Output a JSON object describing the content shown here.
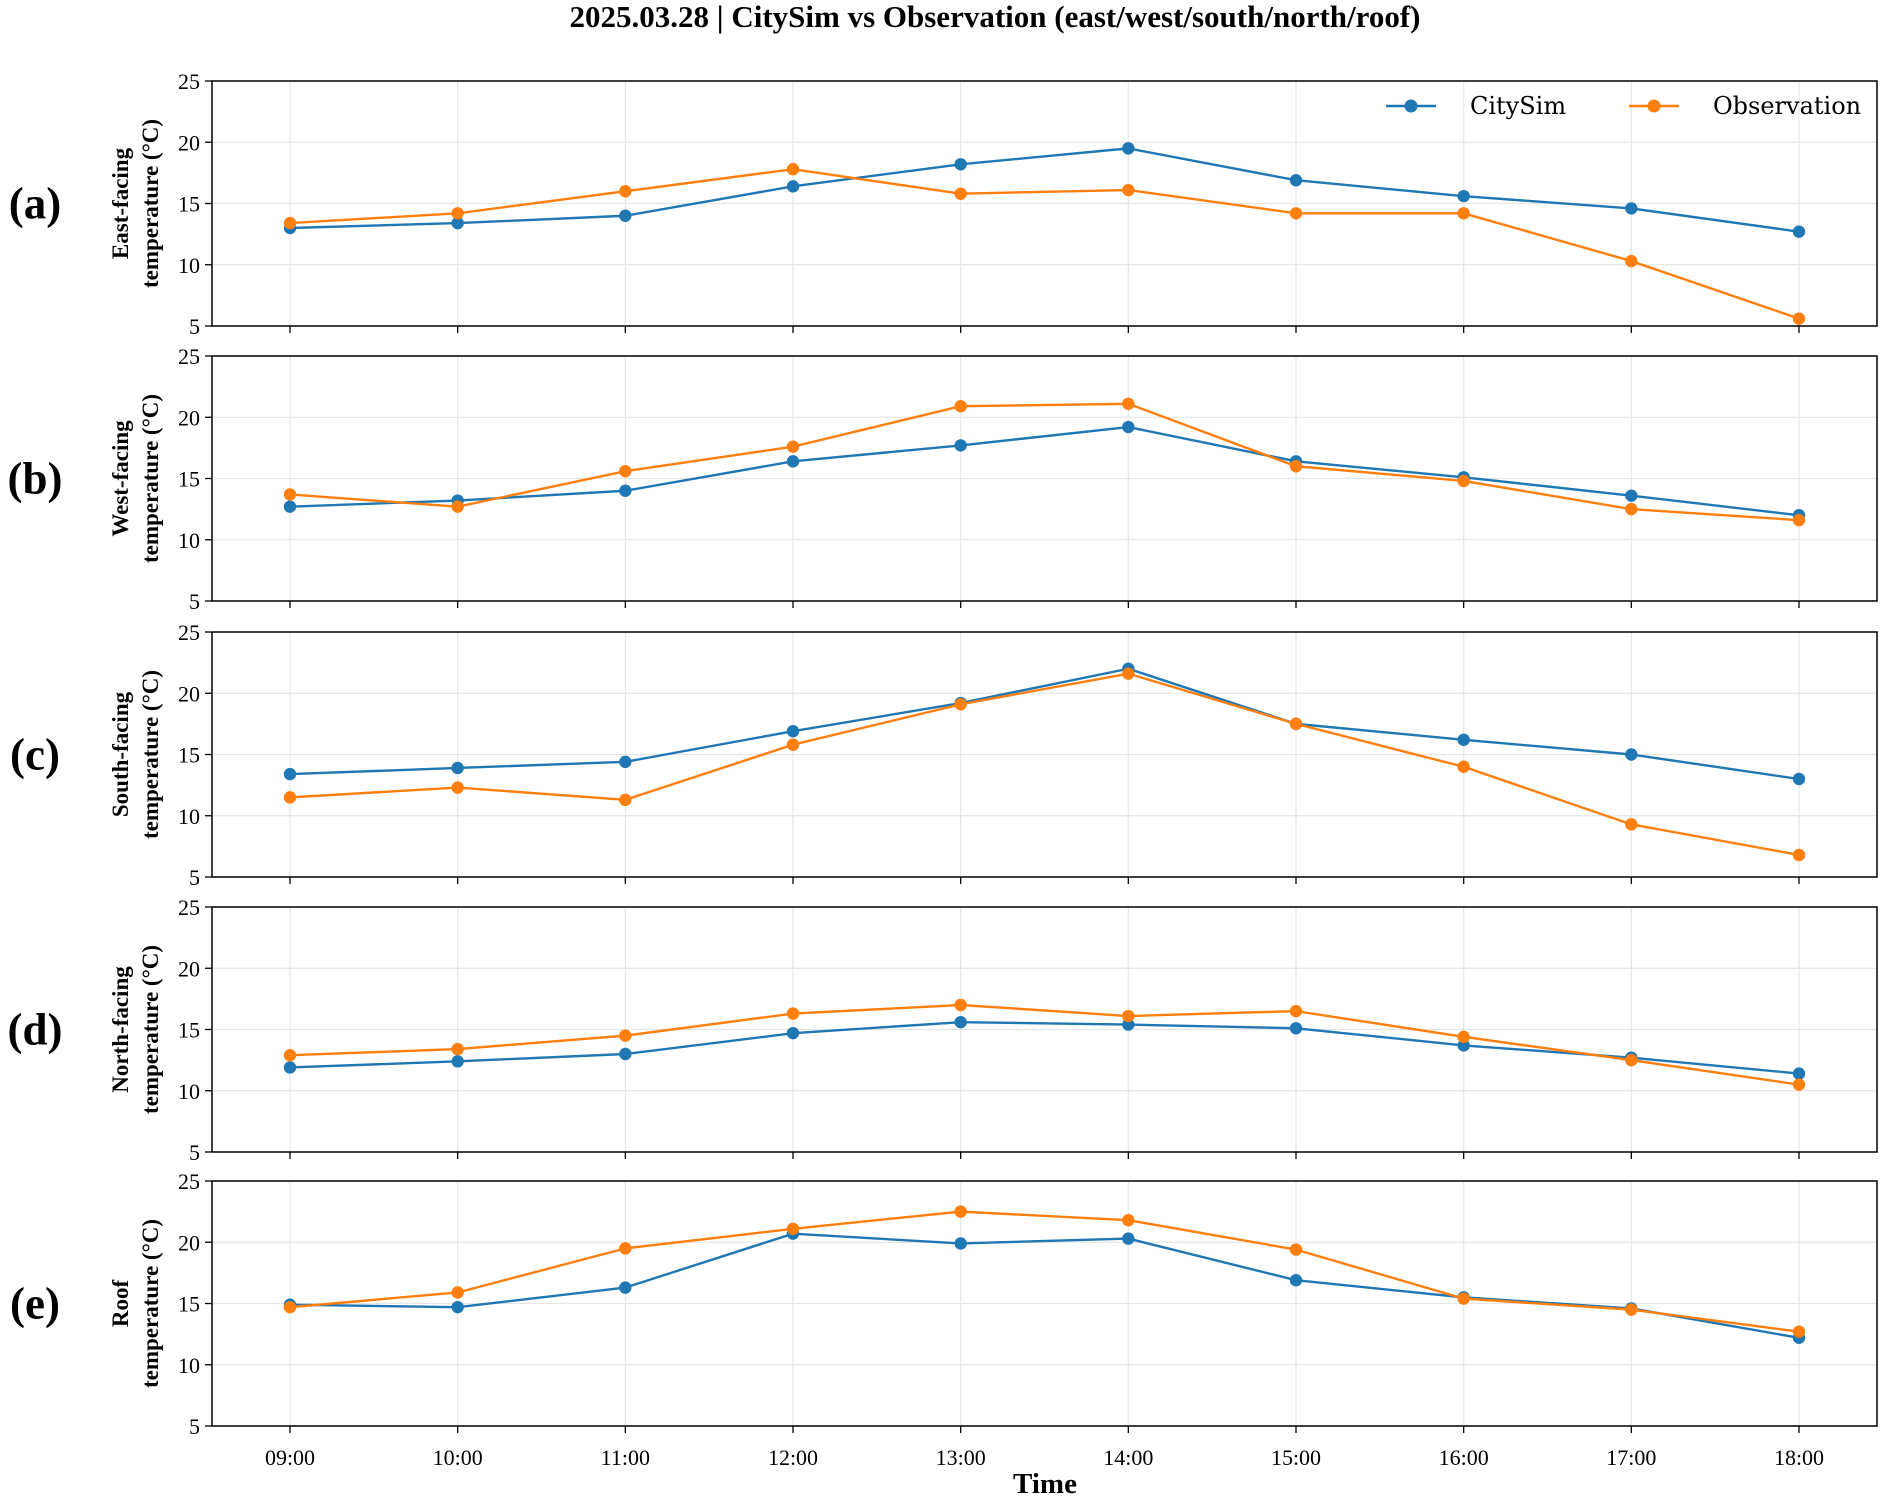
{
  "title": "2025.03.28 | CitySim vs Observation (east/west/south/north/roof)",
  "xlabel": "Time",
  "legend": {
    "placement": "top-right",
    "entries": [
      "CitySim",
      "Observation"
    ]
  },
  "colors": {
    "CitySim": "#1f77b4",
    "Observation": "#ff7f0e"
  },
  "chart_data": [
    {
      "type": "line",
      "panel_label": "(a)",
      "ylabel": [
        "East-facing",
        "temperature (°C)"
      ],
      "categories": [
        "09:00",
        "10:00",
        "11:00",
        "12:00",
        "13:00",
        "14:00",
        "15:00",
        "16:00",
        "17:00",
        "18:00"
      ],
      "ylim": [
        5,
        25
      ],
      "yticks": [
        5,
        10,
        15,
        20,
        25
      ],
      "grid": true,
      "series": [
        {
          "name": "CitySim",
          "values": [
            13.0,
            13.4,
            14.0,
            16.4,
            18.2,
            19.5,
            16.9,
            15.6,
            14.6,
            12.7
          ]
        },
        {
          "name": "Observation",
          "values": [
            13.4,
            14.2,
            16.0,
            17.8,
            15.8,
            16.1,
            14.2,
            14.2,
            10.3,
            5.6
          ]
        }
      ]
    },
    {
      "type": "line",
      "panel_label": "(b)",
      "ylabel": [
        "West-facing",
        "temperature (°C)"
      ],
      "categories": [
        "09:00",
        "10:00",
        "11:00",
        "12:00",
        "13:00",
        "14:00",
        "15:00",
        "16:00",
        "17:00",
        "18:00"
      ],
      "ylim": [
        5,
        25
      ],
      "yticks": [
        5,
        10,
        15,
        20,
        25
      ],
      "grid": true,
      "series": [
        {
          "name": "CitySim",
          "values": [
            12.7,
            13.2,
            14.0,
            16.4,
            17.7,
            19.2,
            16.4,
            15.1,
            13.6,
            12.0
          ]
        },
        {
          "name": "Observation",
          "values": [
            13.7,
            12.7,
            15.6,
            17.6,
            20.9,
            21.1,
            16.0,
            14.8,
            12.5,
            11.6
          ]
        }
      ]
    },
    {
      "type": "line",
      "panel_label": "(c)",
      "ylabel": [
        "South-facing",
        "temperature (°C)"
      ],
      "categories": [
        "09:00",
        "10:00",
        "11:00",
        "12:00",
        "13:00",
        "14:00",
        "15:00",
        "16:00",
        "17:00",
        "18:00"
      ],
      "ylim": [
        5,
        25
      ],
      "yticks": [
        5,
        10,
        15,
        20,
        25
      ],
      "grid": true,
      "series": [
        {
          "name": "CitySim",
          "values": [
            13.4,
            13.9,
            14.4,
            16.9,
            19.2,
            22.0,
            17.5,
            16.2,
            15.0,
            13.0
          ]
        },
        {
          "name": "Observation",
          "values": [
            11.5,
            12.3,
            11.3,
            15.8,
            19.1,
            21.6,
            17.5,
            14.0,
            9.3,
            6.8
          ]
        }
      ]
    },
    {
      "type": "line",
      "panel_label": "(d)",
      "ylabel": [
        "North-facing",
        "temperature (°C)"
      ],
      "categories": [
        "09:00",
        "10:00",
        "11:00",
        "12:00",
        "13:00",
        "14:00",
        "15:00",
        "16:00",
        "17:00",
        "18:00"
      ],
      "ylim": [
        5,
        25
      ],
      "yticks": [
        5,
        10,
        15,
        20,
        25
      ],
      "grid": true,
      "series": [
        {
          "name": "CitySim",
          "values": [
            11.9,
            12.4,
            13.0,
            14.7,
            15.6,
            15.4,
            15.1,
            13.7,
            12.7,
            11.4
          ]
        },
        {
          "name": "Observation",
          "values": [
            12.9,
            13.4,
            14.5,
            16.3,
            17.0,
            16.1,
            16.5,
            14.4,
            12.5,
            10.5
          ]
        }
      ]
    },
    {
      "type": "line",
      "panel_label": "(e)",
      "ylabel": [
        "Roof",
        "temperature (°C)"
      ],
      "categories": [
        "09:00",
        "10:00",
        "11:00",
        "12:00",
        "13:00",
        "14:00",
        "15:00",
        "16:00",
        "17:00",
        "18:00"
      ],
      "ylim": [
        5,
        25
      ],
      "yticks": [
        5,
        10,
        15,
        20,
        25
      ],
      "grid": true,
      "series": [
        {
          "name": "CitySim",
          "values": [
            14.9,
            14.7,
            16.3,
            20.7,
            19.9,
            20.3,
            16.9,
            15.5,
            14.6,
            12.2
          ]
        },
        {
          "name": "Observation",
          "values": [
            14.7,
            15.9,
            19.5,
            21.1,
            22.5,
            21.8,
            19.4,
            15.4,
            14.5,
            12.7
          ]
        }
      ]
    }
  ]
}
